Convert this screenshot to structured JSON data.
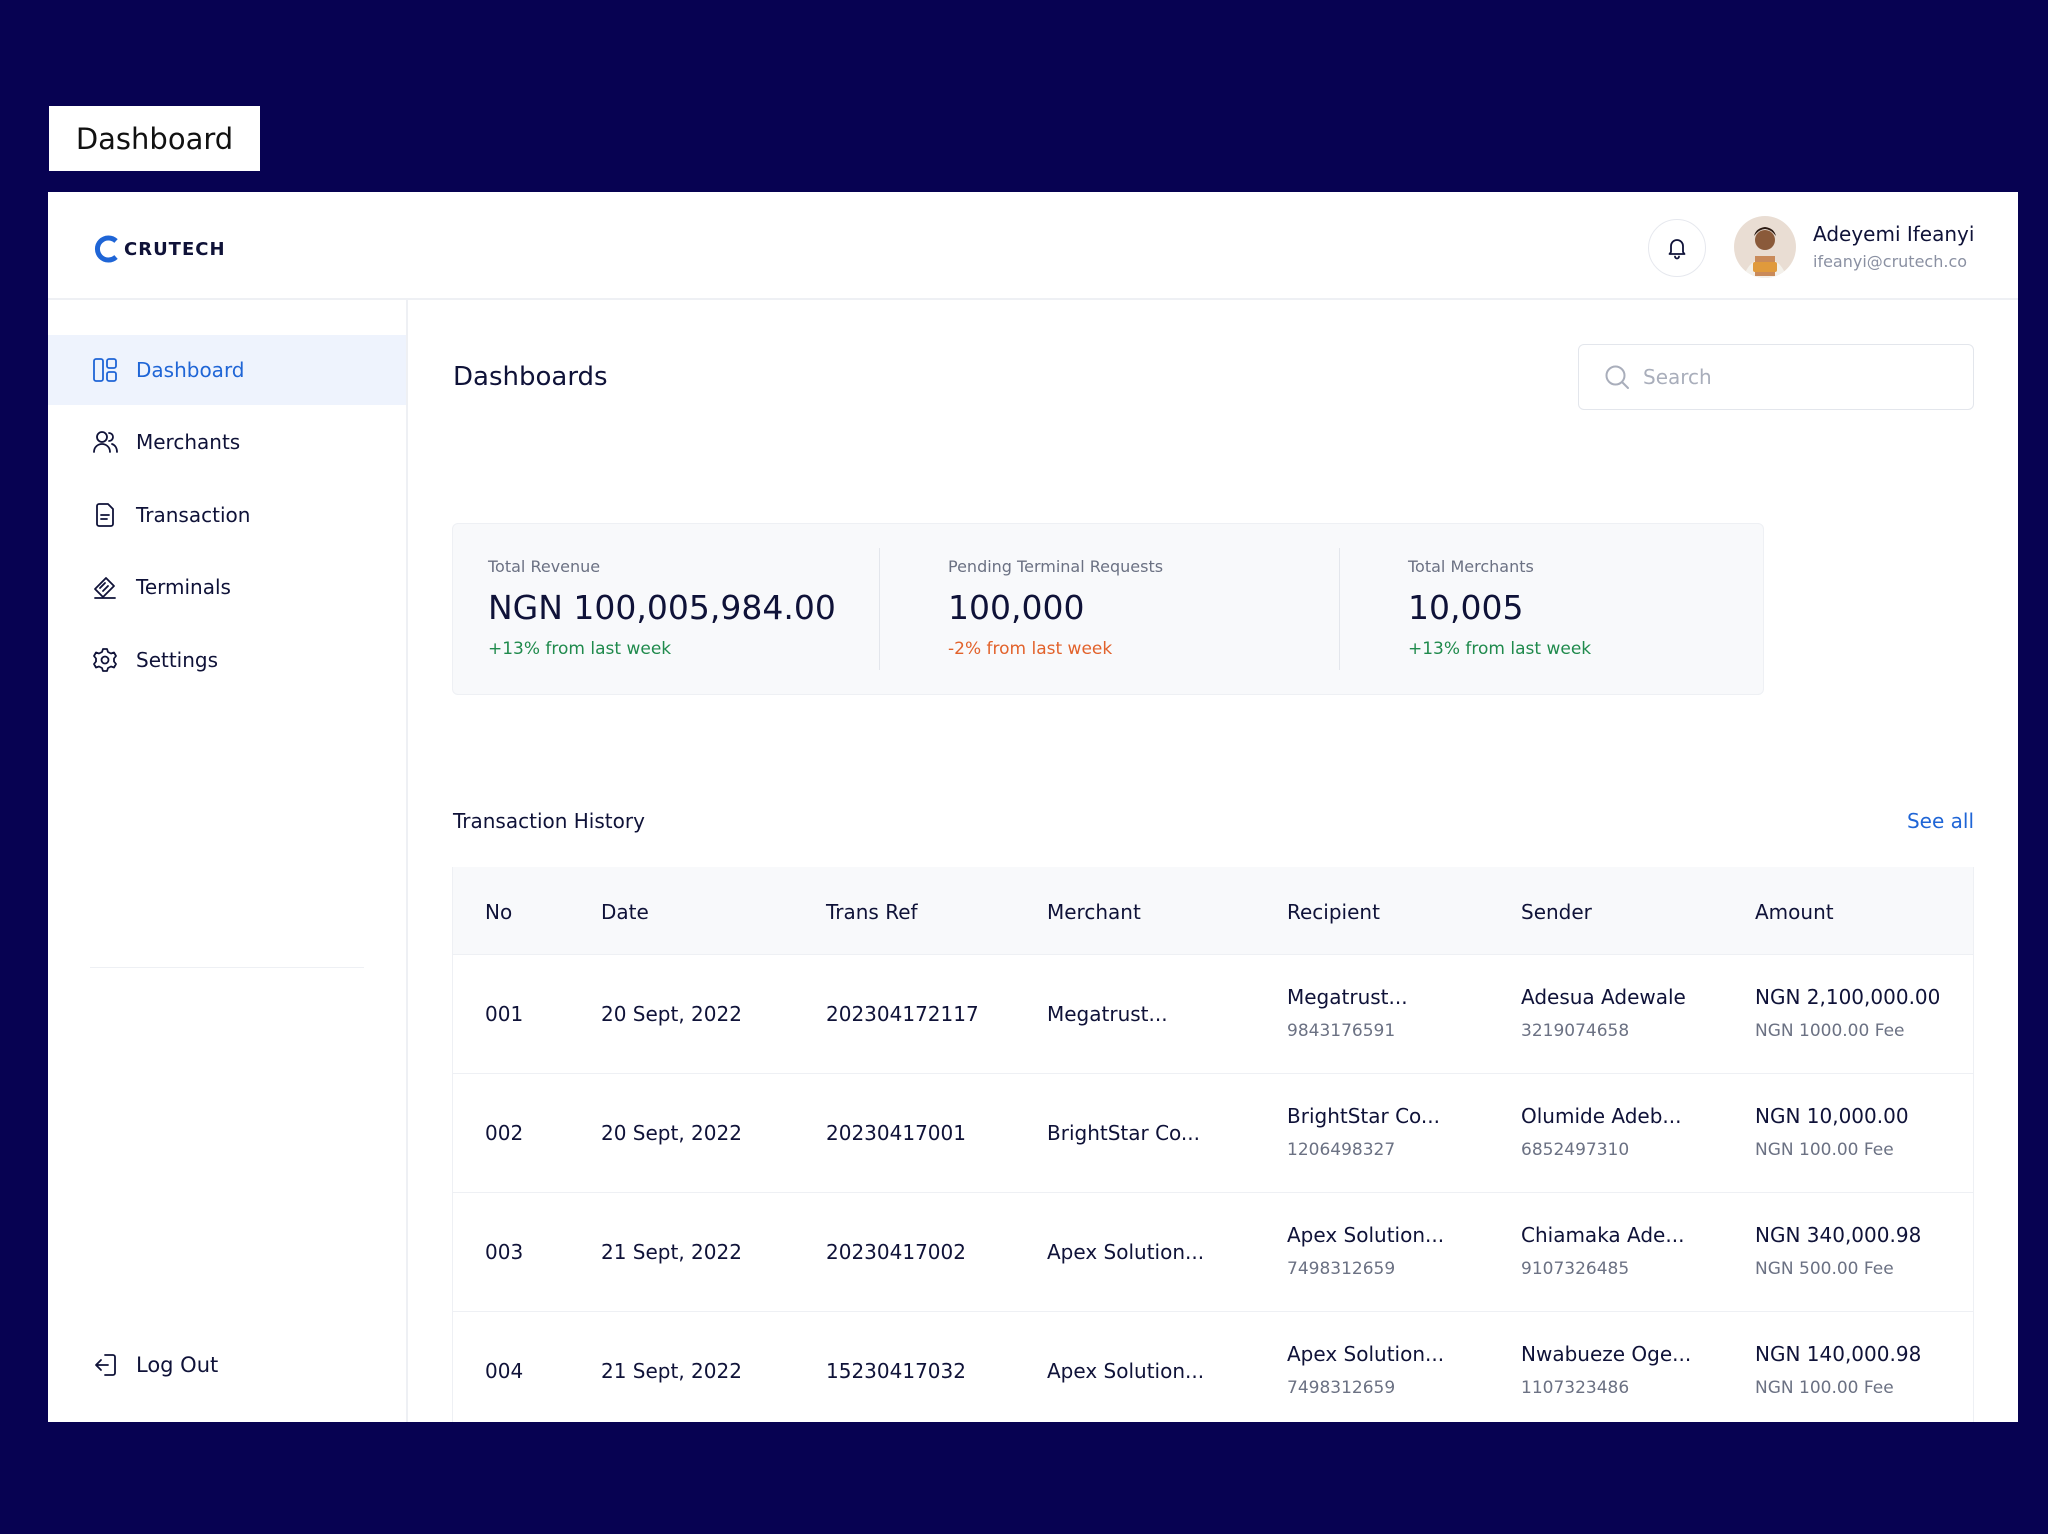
{
  "frame_label": "Dashboard",
  "brand": {
    "name": "CRUTECH",
    "color": "#1f65d6"
  },
  "user": {
    "name": "Adeyemi Ifeanyi",
    "email": "ifeanyi@crutech.co"
  },
  "nav": [
    {
      "label": "Dashboard",
      "icon": "dashboard-icon",
      "active": true
    },
    {
      "label": "Merchants",
      "icon": "users-icon"
    },
    {
      "label": "Transaction",
      "icon": "document-icon"
    },
    {
      "label": "Terminals",
      "icon": "terminal-icon"
    },
    {
      "label": "Settings",
      "icon": "gear-icon"
    }
  ],
  "logout_label": "Log Out",
  "page_title": "Dashboards",
  "search": {
    "placeholder": "Search",
    "value": ""
  },
  "stats": [
    {
      "label": "Total Revenue",
      "value": "NGN 100,005,984.00",
      "delta": "+13% from last week",
      "trend": "up"
    },
    {
      "label": "Pending Terminal Requests",
      "value": "100,000",
      "delta": "-2% from last week",
      "trend": "down"
    },
    {
      "label": "Total Merchants",
      "value": "10,005",
      "delta": "+13% from last week",
      "trend": "up"
    }
  ],
  "colors": {
    "up": "#1f8a4c",
    "down": "#e2622b",
    "background": "#070252",
    "active_nav_bg": "#eef3fd"
  },
  "transactions": {
    "title": "Transaction History",
    "see_all": "See all",
    "columns": [
      "No",
      "Date",
      "Trans Ref",
      "Merchant",
      "Recipient",
      "Sender",
      "Amount"
    ],
    "rows": [
      {
        "no": "001",
        "date": "20 Sept, 2022",
        "ref": "202304172117",
        "merchant": "Megatrust...",
        "recipient": "Megatrust...",
        "recipient_acct": "9843176591",
        "sender": "Adesua Adewale",
        "sender_acct": "3219074658",
        "amount": "NGN 2,100,000.00",
        "fee": "NGN 1000.00 Fee"
      },
      {
        "no": "002",
        "date": "20 Sept, 2022",
        "ref": "20230417001",
        "merchant": "BrightStar Co...",
        "recipient": "BrightStar Co...",
        "recipient_acct": "1206498327",
        "sender": "Olumide Adeb...",
        "sender_acct": "6852497310",
        "amount": "NGN 10,000.00",
        "fee": "NGN 100.00 Fee"
      },
      {
        "no": "003",
        "date": "21 Sept, 2022",
        "ref": "20230417002",
        "merchant": "Apex Solution...",
        "recipient": "Apex Solution...",
        "recipient_acct": "7498312659",
        "sender": "Chiamaka Ade...",
        "sender_acct": "9107326485",
        "amount": "NGN 340,000.98",
        "fee": "NGN 500.00 Fee"
      },
      {
        "no": "004",
        "date": "21 Sept, 2022",
        "ref": "15230417032",
        "merchant": "Apex Solution...",
        "recipient": "Apex Solution...",
        "recipient_acct": "7498312659",
        "sender": "Nwabueze Oge...",
        "sender_acct": "1107323486",
        "amount": "NGN 140,000.98",
        "fee": "NGN 100.00 Fee"
      }
    ]
  }
}
